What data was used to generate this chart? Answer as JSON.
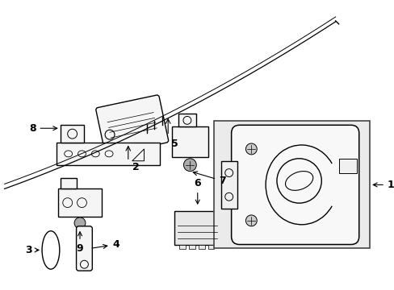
{
  "background_color": "#ffffff",
  "line_color": "#000000",
  "figsize": [
    4.89,
    3.6
  ],
  "dpi": 100,
  "rail_color": "#000000",
  "box_fill": "#e8e8e8",
  "bag_fill": "#f0f0f0"
}
